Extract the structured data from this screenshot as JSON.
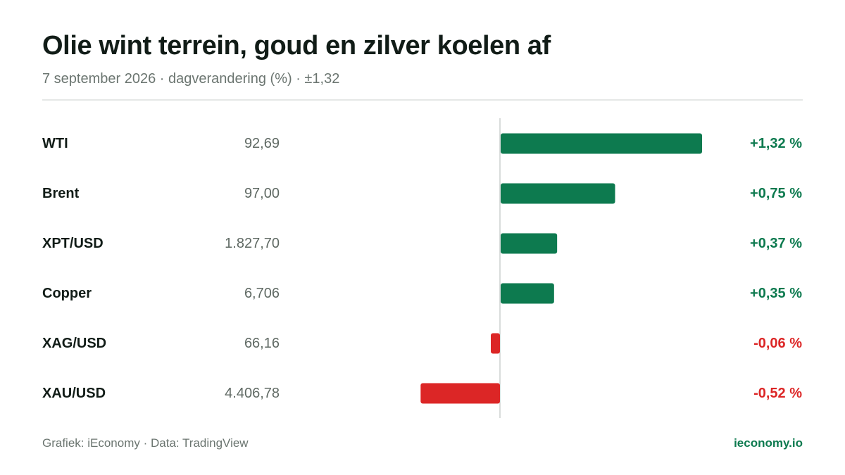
{
  "header": {
    "title": "Olie wint terrein, goud en zilver koelen af",
    "subtitle": "7 september 2026 · dagverandering (%) · ±1,32"
  },
  "footer": {
    "source": "Grafiek: iEconomy · Data: TradingView",
    "brand": "ieconomy.io"
  },
  "colors": {
    "positive": "#0d7a4f",
    "negative": "#dc2626",
    "axis": "#d9dcdb",
    "name": "#111c17",
    "price": "#5f6963"
  },
  "chart_data": {
    "type": "bar",
    "orientation": "horizontal",
    "categories": [
      "WTI",
      "Brent",
      "XPT/USD",
      "Copper",
      "XAG/USD",
      "XAU/USD"
    ],
    "prices": [
      "92,69",
      "97,00",
      "1.827,70",
      "6,706",
      "66,16",
      "4.406,78"
    ],
    "values": [
      1.32,
      0.75,
      0.37,
      0.35,
      -0.06,
      -0.52
    ],
    "value_labels": [
      "+1,32 %",
      "+0,75 %",
      "+0,37 %",
      "+0,35 %",
      "-0,06 %",
      "-0,52 %"
    ],
    "xlim": [
      -1.32,
      1.32
    ],
    "grid": false,
    "legend": "none"
  }
}
